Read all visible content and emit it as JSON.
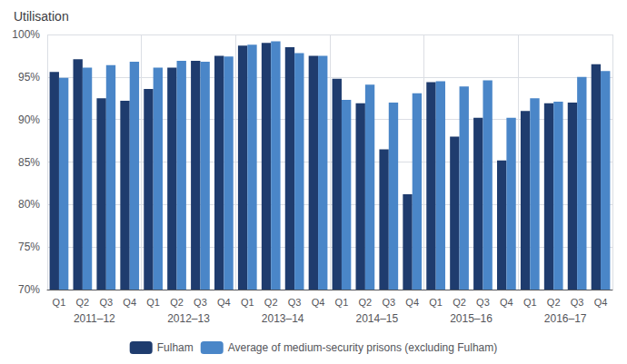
{
  "chart_data": {
    "type": "bar",
    "title": "Utilisation",
    "categories": [
      "Q1",
      "Q2",
      "Q3",
      "Q4",
      "Q1",
      "Q2",
      "Q3",
      "Q4",
      "Q1",
      "Q2",
      "Q3",
      "Q4",
      "Q1",
      "Q2",
      "Q3",
      "Q4",
      "Q1",
      "Q2",
      "Q3",
      "Q4",
      "Q1",
      "Q2",
      "Q3",
      "Q4"
    ],
    "annotations": [
      "2011–12",
      "2012–13",
      "2013–14",
      "2014–15",
      "2015–16",
      "2016–17"
    ],
    "series": [
      {
        "name": "Fulham",
        "color": "#1f3c6e",
        "values": [
          95.6,
          97.1,
          92.5,
          92.2,
          93.6,
          96.1,
          96.9,
          97.5,
          98.7,
          99.0,
          98.5,
          97.5,
          94.8,
          91.9,
          86.5,
          81.2,
          94.4,
          88.0,
          90.2,
          85.2,
          91.0,
          91.9,
          92.0,
          96.5
        ]
      },
      {
        "name": "Average of medium-security prisons (excluding Fulham)",
        "color": "#4a86c8",
        "values": [
          94.9,
          96.1,
          96.4,
          96.8,
          96.1,
          96.9,
          96.8,
          97.4,
          98.8,
          99.2,
          97.8,
          97.5,
          92.3,
          94.1,
          92.0,
          93.1,
          94.5,
          93.9,
          94.6,
          90.2,
          92.5,
          92.1,
          95.0,
          95.7
        ]
      }
    ],
    "ylim": [
      70,
      100
    ],
    "yticks": [
      {
        "value": 70,
        "label": "70%"
      },
      {
        "value": 75,
        "label": "75%"
      },
      {
        "value": 80,
        "label": "80%"
      },
      {
        "value": 85,
        "label": "85%"
      },
      {
        "value": 90,
        "label": "90%"
      },
      {
        "value": 95,
        "label": "95%"
      },
      {
        "value": 100,
        "label": "100%"
      }
    ],
    "grid": true,
    "legend": "bottom"
  }
}
